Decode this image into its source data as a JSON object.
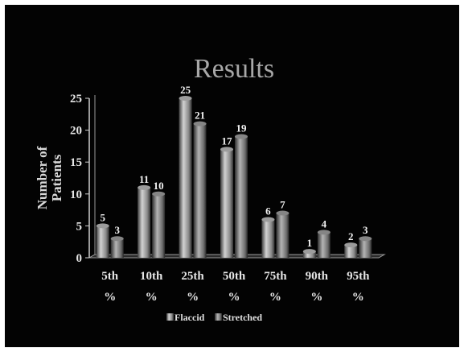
{
  "chart_data": {
    "type": "bar",
    "title": "Results",
    "ylabel": [
      "Number of",
      "Patients"
    ],
    "xlabel": "",
    "categories": [
      [
        "5th",
        "%"
      ],
      [
        "10th",
        "%"
      ],
      [
        "25th",
        "%"
      ],
      [
        "50th",
        "%"
      ],
      [
        "75th",
        "%"
      ],
      [
        "90th",
        "%"
      ],
      [
        "95th",
        "%"
      ]
    ],
    "series": [
      {
        "name": "Flaccid",
        "values": [
          5,
          11,
          25,
          17,
          6,
          1,
          2
        ],
        "color": "#8c8c8c"
      },
      {
        "name": "Stretched",
        "values": [
          3,
          10,
          21,
          19,
          7,
          4,
          3
        ],
        "color": "#7a7a7a"
      }
    ],
    "ylim": [
      0,
      25
    ],
    "yticks": [
      0,
      5,
      10,
      15,
      20,
      25
    ],
    "legend": "bottom",
    "style": "3d-cylinder"
  }
}
